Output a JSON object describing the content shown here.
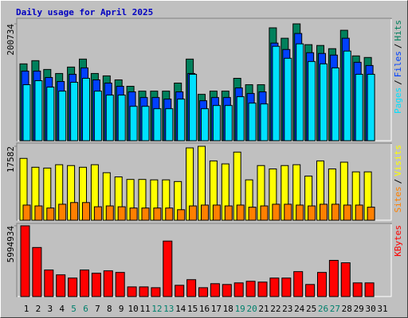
{
  "separator": "/",
  "chart_data": [
    {
      "type": "bar",
      "title": "Daily usage for April 2025",
      "ylim": [
        0,
        200734
      ],
      "yticks": [
        200734
      ],
      "series": [
        {
          "name": "Pages",
          "color": "#00e0ff",
          "values": [
            96200,
            103100,
            92100,
            85200,
            100400,
            107200,
            85200,
            78400,
            78400,
            59100,
            59100,
            55000,
            55000,
            71500,
            114100,
            55000,
            60500,
            60500,
            75600,
            64600,
            63200,
            162200,
            141600,
            166400,
            136100,
            132000,
            125100,
            154000,
            114100,
            114100,
            null
          ]
        },
        {
          "name": "Files",
          "color": "#0040ff",
          "values": [
            119600,
            119600,
            108600,
            101700,
            114100,
            125100,
            104500,
            99000,
            93500,
            83900,
            74200,
            74200,
            71500,
            83900,
            115500,
            68700,
            74200,
            74200,
            90700,
            81100,
            83900,
            167700,
            156700,
            184200,
            151200,
            149900,
            147100,
            176000,
            134700,
            129200,
            null
          ]
        },
        {
          "name": "Hits",
          "color": "#00805c",
          "values": [
            132000,
            137500,
            122400,
            115500,
            126500,
            140200,
            115500,
            111400,
            104500,
            93500,
            85200,
            85200,
            85200,
            99000,
            140200,
            79700,
            85200,
            85200,
            107200,
            96200,
            96200,
            193900,
            176000,
            200734,
            165000,
            163600,
            158100,
            189700,
            145700,
            143000,
            null
          ]
        }
      ]
    },
    {
      "type": "bar",
      "ylim": [
        0,
        17582
      ],
      "yticks": [
        17582
      ],
      "series": [
        {
          "name": "Sites",
          "color": "#ff8000",
          "values": [
            3600,
            3400,
            2900,
            3800,
            4200,
            4200,
            3200,
            3400,
            3200,
            2900,
            2900,
            2900,
            2900,
            2500,
            3400,
            3600,
            3600,
            3400,
            3600,
            3100,
            3400,
            3800,
            3800,
            3600,
            3400,
            3800,
            3800,
            3600,
            3600,
            3100,
            null
          ]
        },
        {
          "name": "Visits",
          "color": "#ffff00",
          "values": [
            14700,
            12600,
            12400,
            13200,
            13000,
            12600,
            13200,
            11300,
            10300,
            9700,
            9700,
            9600,
            9600,
            9200,
            17200,
            17582,
            14100,
            13400,
            16200,
            9600,
            13000,
            12200,
            13000,
            13200,
            10500,
            14100,
            12200,
            13800,
            11500,
            11500,
            null
          ]
        }
      ]
    },
    {
      "type": "bar",
      "ylim": [
        0,
        5994934
      ],
      "yticks": [
        5994934
      ],
      "categories": [
        "1",
        "2",
        "3",
        "4",
        "5",
        "6",
        "7",
        "8",
        "9",
        "10",
        "11",
        "12",
        "13",
        "14",
        "15",
        "16",
        "17",
        "18",
        "19",
        "20",
        "21",
        "22",
        "23",
        "24",
        "25",
        "26",
        "27",
        "28",
        "29",
        "30",
        "31"
      ],
      "category_colors": [
        "#000000",
        "#000000",
        "#000000",
        "#000000",
        "#00806c",
        "#00806c",
        "#000000",
        "#000000",
        "#000000",
        "#000000",
        "#000000",
        "#00806c",
        "#00806c",
        "#000000",
        "#000000",
        "#000000",
        "#000000",
        "#000000",
        "#00806c",
        "#00806c",
        "#000000",
        "#000000",
        "#000000",
        "#000000",
        "#000000",
        "#00806c",
        "#00806c",
        "#000000",
        "#000000",
        "#000000",
        "#000000"
      ],
      "series": [
        {
          "name": "KBytes",
          "color": "#ff0000",
          "values": [
            5994934,
            4155600,
            2248100,
            1839300,
            1566900,
            2248100,
            1975600,
            2180000,
            2043700,
            817500,
            817500,
            749400,
            4700600,
            953700,
            1430600,
            749400,
            1090000,
            1021900,
            1158100,
            1294400,
            1226200,
            1566900,
            1566900,
            2111800,
            1021900,
            2043700,
            3065600,
            2861200,
            1158100,
            1158100,
            null
          ]
        }
      ]
    }
  ]
}
